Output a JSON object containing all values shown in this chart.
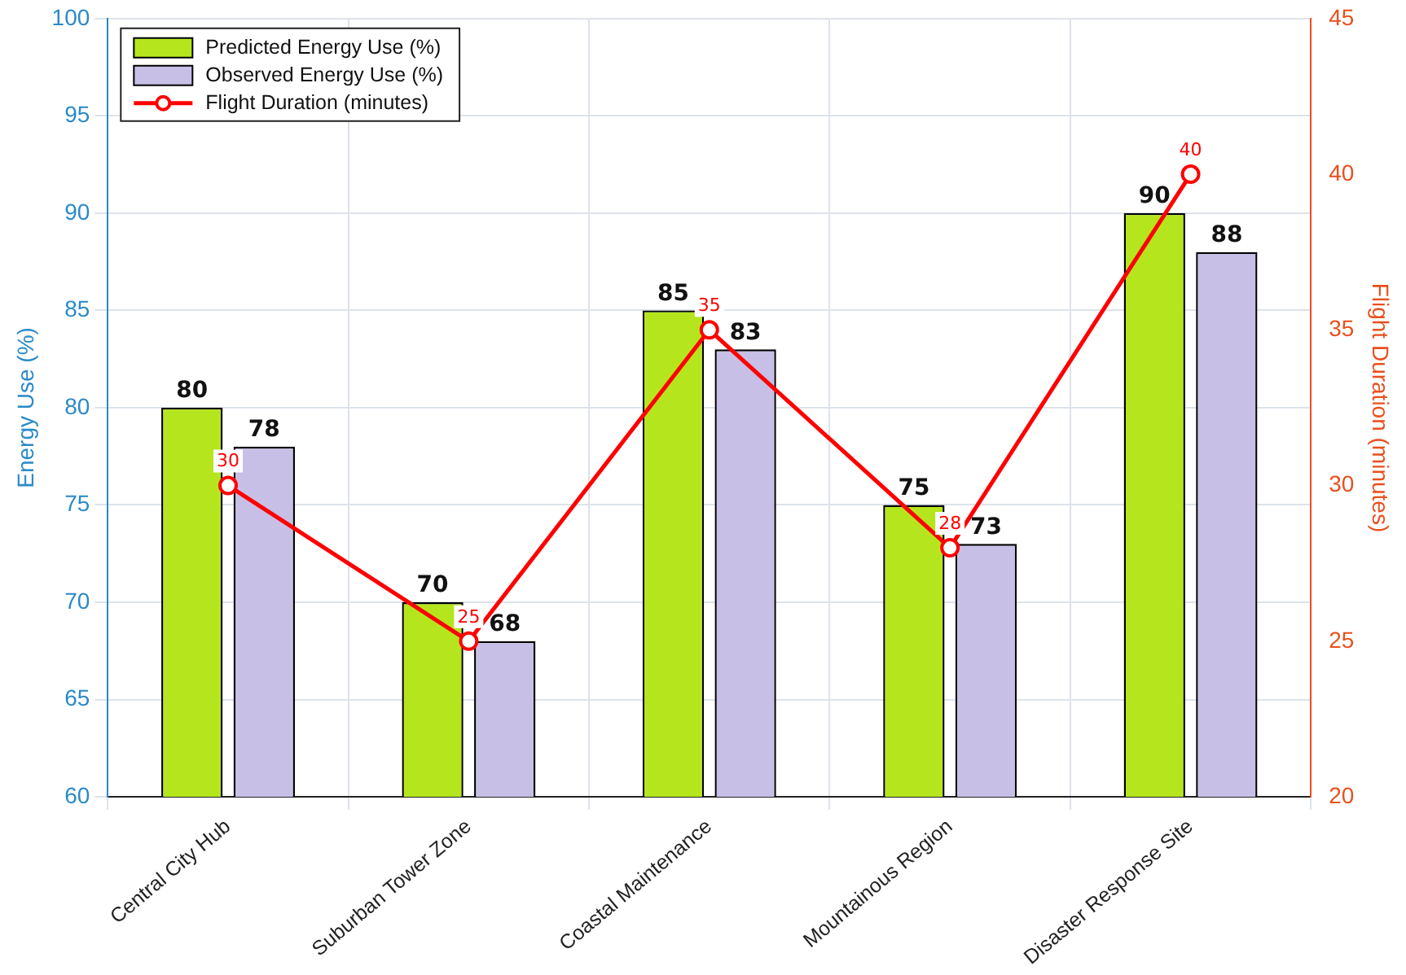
{
  "chart_data": {
    "type": "bar",
    "categories": [
      "Central City Hub",
      "Suburban Tower Zone",
      "Coastal Maintenance",
      "Mountainous Region",
      "Disaster Response Site"
    ],
    "series": [
      {
        "name": "Predicted Energy Use (%)",
        "color": "#b5e61d",
        "values": [
          80,
          70,
          85,
          75,
          90
        ]
      },
      {
        "name": "Observed Energy Use (%)",
        "color": "#c8bfe7",
        "values": [
          78,
          68,
          83,
          73,
          88
        ]
      },
      {
        "name": "Flight Duration (minutes)",
        "type": "line",
        "axis": "y2",
        "color": "#ff0000",
        "marker": "circle",
        "values": [
          30,
          25,
          35,
          28,
          40
        ]
      }
    ],
    "ylabel": "Energy Use (%)",
    "y2label": "Flight Duration (minutes)",
    "ylim": [
      60,
      100
    ],
    "yticks": [
      60,
      65,
      70,
      75,
      80,
      85,
      90,
      95,
      100
    ],
    "y2lim": [
      20,
      45
    ],
    "y2ticks": [
      20,
      25,
      30,
      35,
      40,
      45
    ],
    "grid": true,
    "legend": "top left",
    "data_labels": true
  }
}
